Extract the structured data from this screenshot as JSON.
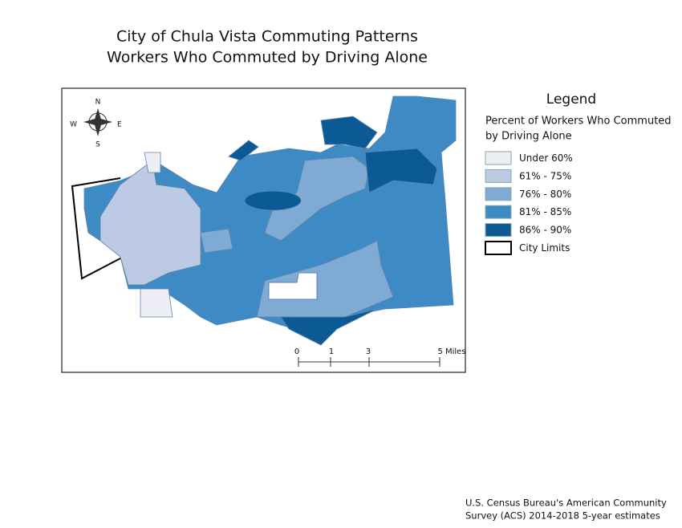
{
  "title": [
    "City of Chula Vista Commuting Patterns",
    "Workers Who Commuted by Driving Alone"
  ],
  "compass": {
    "n": "N",
    "s": "S",
    "e": "E",
    "w": "W"
  },
  "legend": {
    "title": "Legend",
    "subtitle_lines": [
      "Percent of Workers Who Commuted",
      "by Driving Alone"
    ],
    "items": [
      {
        "label": "Under 60%",
        "color": "#eeeef6"
      },
      {
        "label": "61% - 75%",
        "color": "#bccbe3"
      },
      {
        "label": "76% - 80%",
        "color": "#7eaad4"
      },
      {
        "label": "81% - 85%",
        "color": "#3d8ac4"
      },
      {
        "label": "86% - 90%",
        "color": "#0b5a96"
      },
      {
        "label": "City Limits",
        "color": "#ffffff",
        "border": "#000000"
      }
    ]
  },
  "scale_bar": {
    "labels": [
      "0",
      "1",
      "3",
      "5 Miles"
    ]
  },
  "source": [
    "U.S. Census Bureau's American Community",
    "Survey (ACS) 2014-2018 5-year estimates"
  ]
}
